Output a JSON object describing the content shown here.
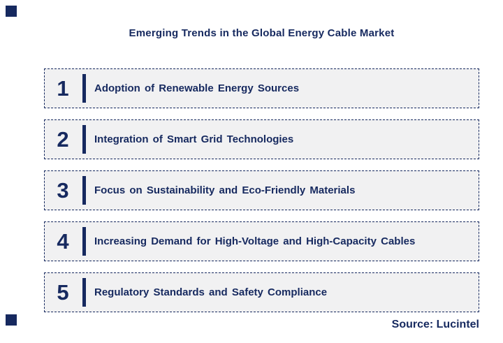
{
  "title": "Emerging Trends in the Global Energy Cable Market",
  "source_label": "Source: Lucintel",
  "colors": {
    "navy": "#16295F",
    "box_fill": "#F1F1F2",
    "background": "#FFFFFF"
  },
  "trends": [
    {
      "number": "1",
      "label": "Adoption of Renewable Energy Sources"
    },
    {
      "number": "2",
      "label": "Integration of Smart Grid Technologies"
    },
    {
      "number": "3",
      "label": "Focus on Sustainability and Eco-Friendly Materials"
    },
    {
      "number": "4",
      "label": "Increasing Demand for High-Voltage and High-Capacity Cables"
    },
    {
      "number": "5",
      "label": "Regulatory Standards and Safety Compliance"
    }
  ]
}
